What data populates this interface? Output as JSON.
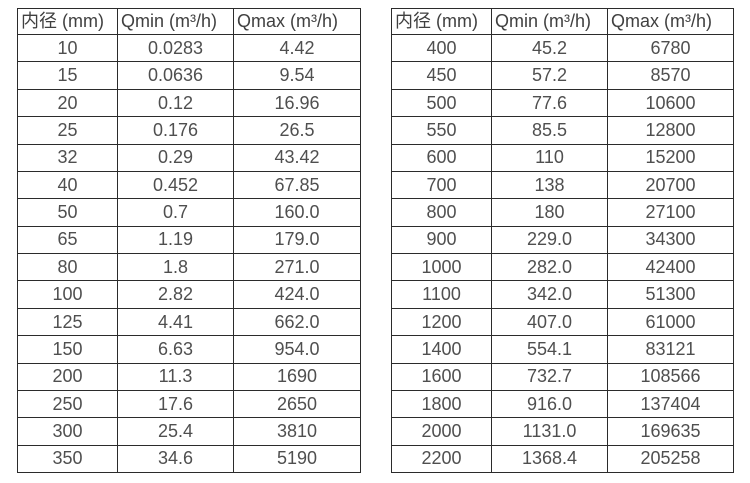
{
  "page": {
    "background_color": "#ffffff",
    "border_color": "#2b2b2b",
    "text_color": "#4f4f4f"
  },
  "tables": [
    {
      "name": "flow-table-small-diameters",
      "headers": [
        "内径 (mm)",
        "Qmin (m³/h)",
        "Qmax (m³/h)"
      ],
      "rows": [
        [
          "10",
          "0.0283",
          "4.42"
        ],
        [
          "15",
          "0.0636",
          "9.54"
        ],
        [
          "20",
          "0.12",
          "16.96"
        ],
        [
          "25",
          "0.176",
          "26.5"
        ],
        [
          "32",
          "0.29",
          "43.42"
        ],
        [
          "40",
          "0.452",
          "67.85"
        ],
        [
          "50",
          "0.7",
          "160.0"
        ],
        [
          "65",
          "1.19",
          "179.0"
        ],
        [
          "80",
          "1.8",
          "271.0"
        ],
        [
          "100",
          "2.82",
          "424.0"
        ],
        [
          "125",
          "4.41",
          "662.0"
        ],
        [
          "150",
          "6.63",
          "954.0"
        ],
        [
          "200",
          "11.3",
          "1690"
        ],
        [
          "250",
          "17.6",
          "2650"
        ],
        [
          "300",
          "25.4",
          "3810"
        ],
        [
          "350",
          "34.6",
          "5190"
        ]
      ]
    },
    {
      "name": "flow-table-large-diameters",
      "headers": [
        "内径 (mm)",
        "Qmin (m³/h)",
        "Qmax (m³/h)"
      ],
      "rows": [
        [
          "400",
          "45.2",
          "6780"
        ],
        [
          "450",
          "57.2",
          "8570"
        ],
        [
          "500",
          "77.6",
          "10600"
        ],
        [
          "550",
          "85.5",
          "12800"
        ],
        [
          "600",
          "110",
          "15200"
        ],
        [
          "700",
          "138",
          "20700"
        ],
        [
          "800",
          "180",
          "27100"
        ],
        [
          "900",
          "229.0",
          "34300"
        ],
        [
          "1000",
          "282.0",
          "42400"
        ],
        [
          "1100",
          "342.0",
          "51300"
        ],
        [
          "1200",
          "407.0",
          "61000"
        ],
        [
          "1400",
          "554.1",
          "83121"
        ],
        [
          "1600",
          "732.7",
          "108566"
        ],
        [
          "1800",
          "916.0",
          "137404"
        ],
        [
          "2000",
          "1131.0",
          "169635"
        ],
        [
          "2200",
          "1368.4",
          "205258"
        ]
      ]
    }
  ]
}
